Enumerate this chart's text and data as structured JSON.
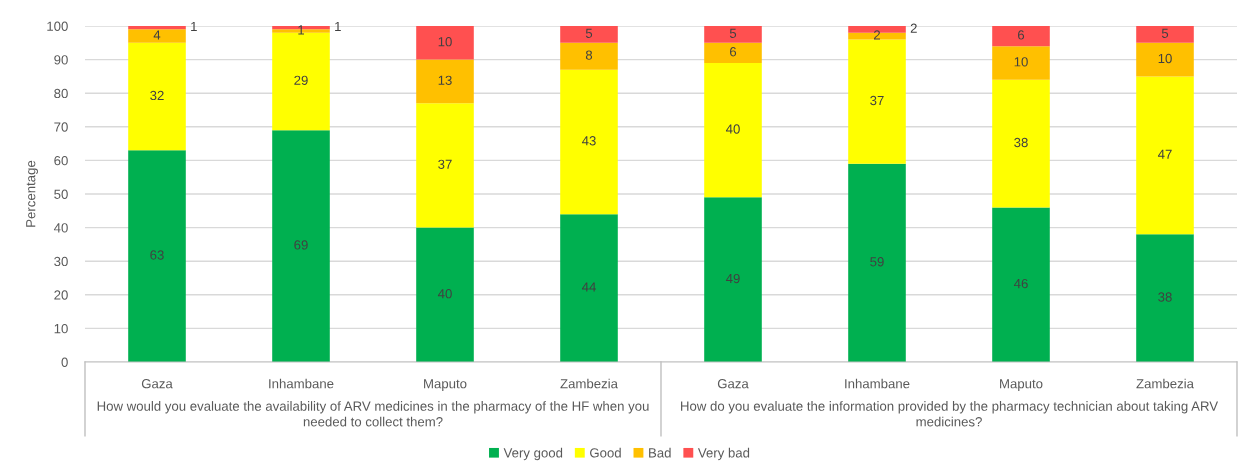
{
  "chart_data": {
    "type": "bar",
    "stacked": true,
    "ylabel": "Percentage",
    "categories": [
      "Gaza",
      "Inhambane",
      "Maputo",
      "Zambezia",
      "Gaza",
      "Inhambane",
      "Maputo",
      "Zambezia"
    ],
    "series": [
      {
        "name": "Very good",
        "color": "#00b050",
        "values": [
          63,
          69,
          40,
          44,
          49,
          59,
          46,
          38
        ]
      },
      {
        "name": "Good",
        "color": "#ffff00",
        "values": [
          32,
          29,
          37,
          43,
          40,
          37,
          38,
          47
        ]
      },
      {
        "name": "Bad",
        "color": "#ffc000",
        "values": [
          4,
          1,
          13,
          8,
          6,
          2,
          10,
          10
        ]
      },
      {
        "name": "Very bad",
        "color": "#ff5050",
        "values": [
          1,
          1,
          10,
          5,
          5,
          2,
          6,
          5
        ]
      }
    ],
    "ylim": [
      0,
      100
    ],
    "yticks": [
      0,
      10,
      20,
      30,
      40,
      50,
      60,
      70,
      80,
      90,
      100
    ],
    "grid": "y",
    "legend": "bottom",
    "data_labels": true,
    "annotations": [
      "How would you evaluate the availability of ARV medicines in the pharmacy of the HF when you\nneeded to collect them?",
      "How do you evaluate the information provided by the pharmacy technician about taking ARV\nmedicines?"
    ]
  }
}
